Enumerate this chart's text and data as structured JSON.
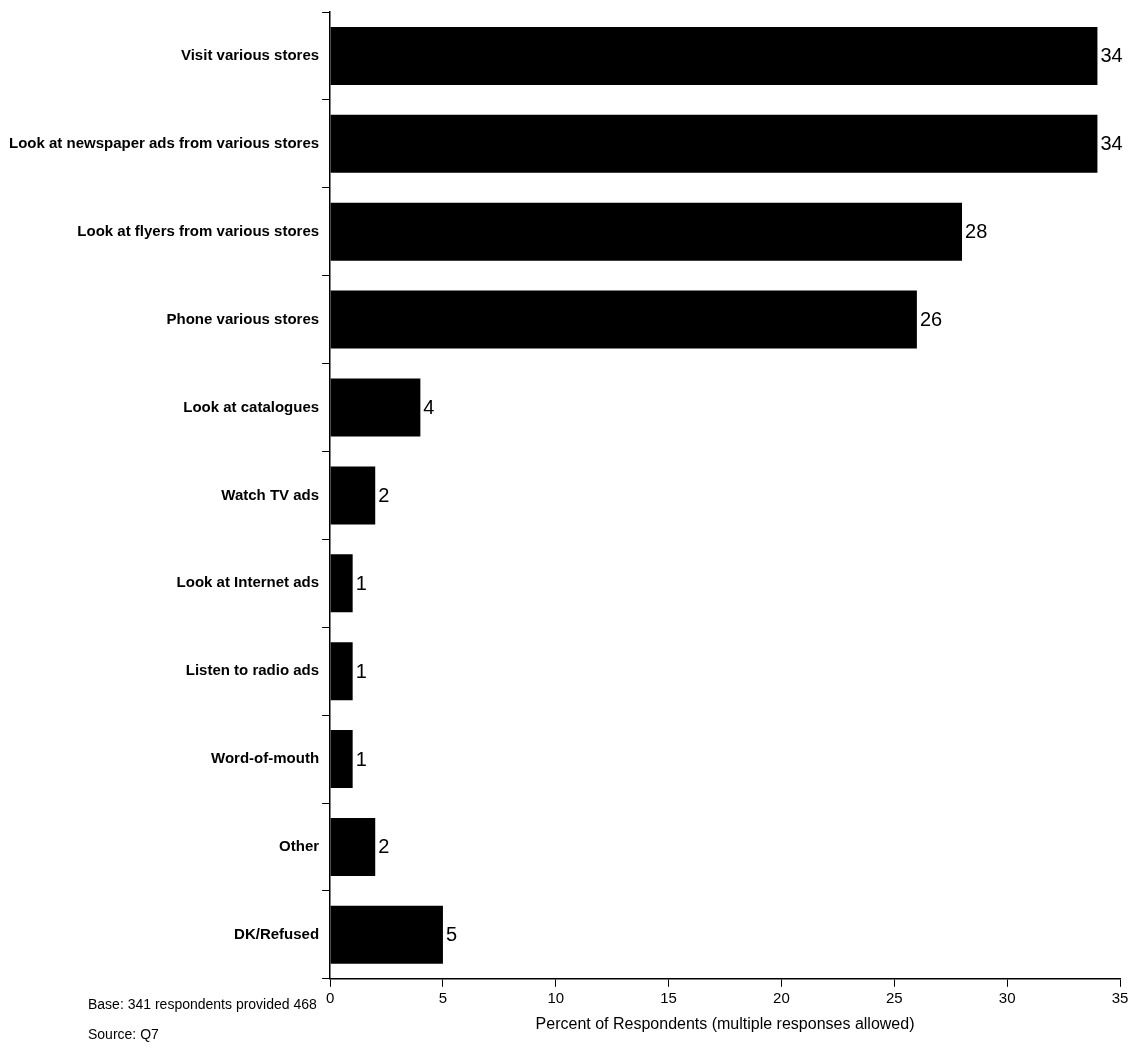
{
  "chart_data": {
    "type": "bar",
    "orientation": "horizontal",
    "categories": [
      "Visit various stores",
      "Look at newspaper ads from various stores",
      "Look at flyers from various stores",
      "Phone various stores",
      "Look at catalogues",
      "Watch TV ads",
      "Look at Internet ads",
      "Listen to radio ads",
      "Word-of-mouth",
      "Other",
      "DK/Refused"
    ],
    "values": [
      34,
      34,
      28,
      26,
      4,
      2,
      1,
      1,
      1,
      2,
      5
    ],
    "color": "#000000",
    "xlim": [
      0,
      35
    ],
    "xticks": [
      0,
      5,
      10,
      15,
      20,
      25,
      30,
      35
    ],
    "xlabel": "Percent of Respondents (multiple responses allowed)",
    "annotations": [
      "Base: 341 respondents provided 468",
      "Source: Q7"
    ],
    "data_labels": true,
    "grid": false,
    "legend": false
  }
}
